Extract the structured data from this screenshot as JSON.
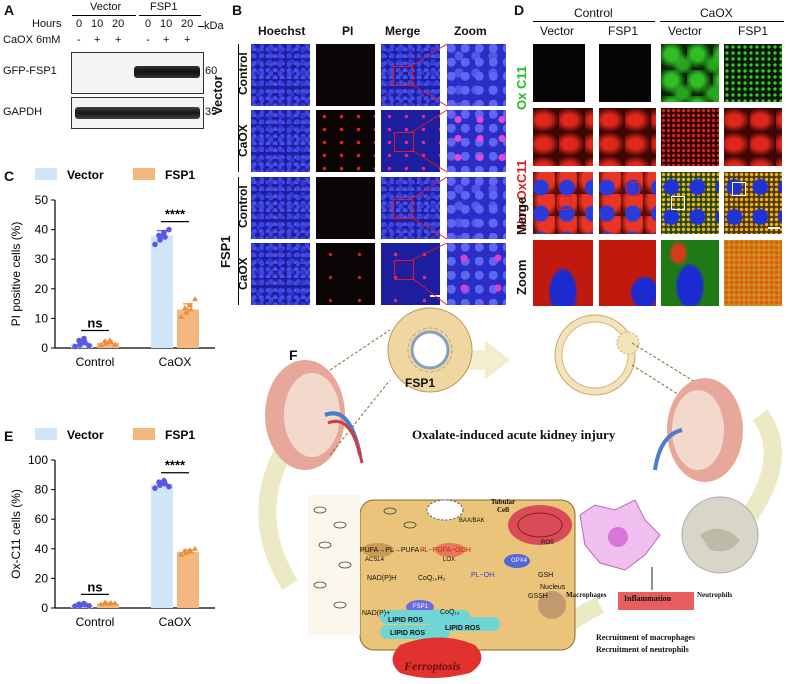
{
  "panelA": {
    "letter": "A",
    "hours_label": "Hours",
    "hours": [
      "0",
      "10",
      "20",
      "0",
      "10",
      "20"
    ],
    "treat_label": "CaOX 6mM",
    "treat_signs": [
      "-",
      "+",
      "+",
      "-",
      "+",
      "+"
    ],
    "groups": [
      "Vector",
      "FSP1"
    ],
    "kda": "kDa",
    "blots": [
      {
        "label": "GFP-FSP1",
        "marker": "60"
      },
      {
        "label": "GAPDH",
        "marker": "35"
      }
    ]
  },
  "panelB": {
    "letter": "B",
    "columns": [
      "Hoechst",
      "PI",
      "Merge",
      "Zoom"
    ],
    "groups": [
      "Vector",
      "FSP1"
    ],
    "rows": [
      "Control",
      "CaOX",
      "Control",
      "CaOX"
    ]
  },
  "panelD": {
    "letter": "D",
    "groups": [
      "Control",
      "CaOX"
    ],
    "columns": [
      "Vector",
      "FSP1",
      "Vector",
      "FSP1"
    ],
    "row_label_green": "Ox C11",
    "row_label_red": "Non-OxC11",
    "row_merge": "Merge",
    "row_zoom": "Zoom"
  },
  "chartC": {
    "letter": "C",
    "significance": [
      "ns",
      "****"
    ],
    "chart_data": {
      "type": "bar",
      "categories": [
        "Control",
        "CaOX"
      ],
      "series": [
        {
          "name": "Vector",
          "values": [
            1.5,
            38
          ],
          "points": [
            [
              0.5,
              1.0,
              1.8,
              2.5,
              3.2,
              0.8
            ],
            [
              35,
              36.5,
              37.5,
              38,
              39,
              40
            ]
          ],
          "color": "#cfe6f8",
          "dot": "#5757e8"
        },
        {
          "name": "FSP1",
          "values": [
            1.8,
            13
          ],
          "points": [
            [
              1.0,
              1.5,
              2.0,
              2.3,
              2.6,
              1.2
            ],
            [
              10.5,
              12,
              13,
              13.5,
              14.5,
              16.5
            ]
          ],
          "color": "#f3b880",
          "dot": "#e98f3c"
        }
      ],
      "ylabel": "PI positive cells (%)",
      "ylim": [
        0,
        50
      ],
      "yticks": [
        0,
        10,
        20,
        30,
        40,
        50
      ]
    }
  },
  "chartE": {
    "letter": "E",
    "significance": [
      "ns",
      "****"
    ],
    "chart_data": {
      "type": "bar",
      "categories": [
        "Control",
        "CaOX"
      ],
      "series": [
        {
          "name": "Vector",
          "values": [
            2,
            84
          ],
          "points": [
            [
              1.2,
              1.8,
              2.2,
              2.6,
              3.0,
              1.5
            ],
            [
              81,
              83,
              84,
              85,
              86,
              82
            ]
          ],
          "color": "#cfe6f8",
          "dot": "#5757e8"
        },
        {
          "name": "FSP1",
          "values": [
            3,
            38
          ],
          "points": [
            [
              2.5,
              3.0,
              3.4,
              3.8,
              2.8,
              3.2
            ],
            [
              36,
              37,
              38,
              38.5,
              39,
              40
            ]
          ],
          "color": "#f3b880",
          "dot": "#e98f3c"
        }
      ],
      "ylabel": "Ox-C11 cells (%)",
      "ylim": [
        0,
        100
      ],
      "yticks": [
        0,
        20,
        40,
        60,
        80,
        100
      ]
    }
  },
  "panelF": {
    "letter": "F",
    "fsp1_label": "FSP1",
    "title": "Oxalate-induced acute kidney injury",
    "cell_label": "Tubular Cell",
    "bax": "BAX/BAK",
    "pathway": {
      "pufa": "PUFA→PL→PUFA→",
      "plpufa": "PL−PUFA−OOH",
      "acsl4": "ACSL4",
      "lox": "LOX",
      "nadph": "NAD(P)H",
      "coq10h2": "CoQ₁₀H₂",
      "fsp1": "FSP1",
      "nadp": "NAD(P)+",
      "coq10": "CoQ₁₀",
      "lipid_ros": "LIPID ROS",
      "gpx4": "GPX4",
      "ploh": "PL−OH",
      "gsh": "GSH",
      "gssh": "GSSH",
      "ros": "ROS",
      "nucleus": "Nucleus"
    },
    "ferroptosis": "Ferroptosis",
    "macrophages": "Macrophages",
    "neutrophils": "Neutrophils",
    "inflammation": "Inflammation",
    "recruit1": "Recruitment of macrophages",
    "recruit2": "Recruitment of neutrophils"
  }
}
